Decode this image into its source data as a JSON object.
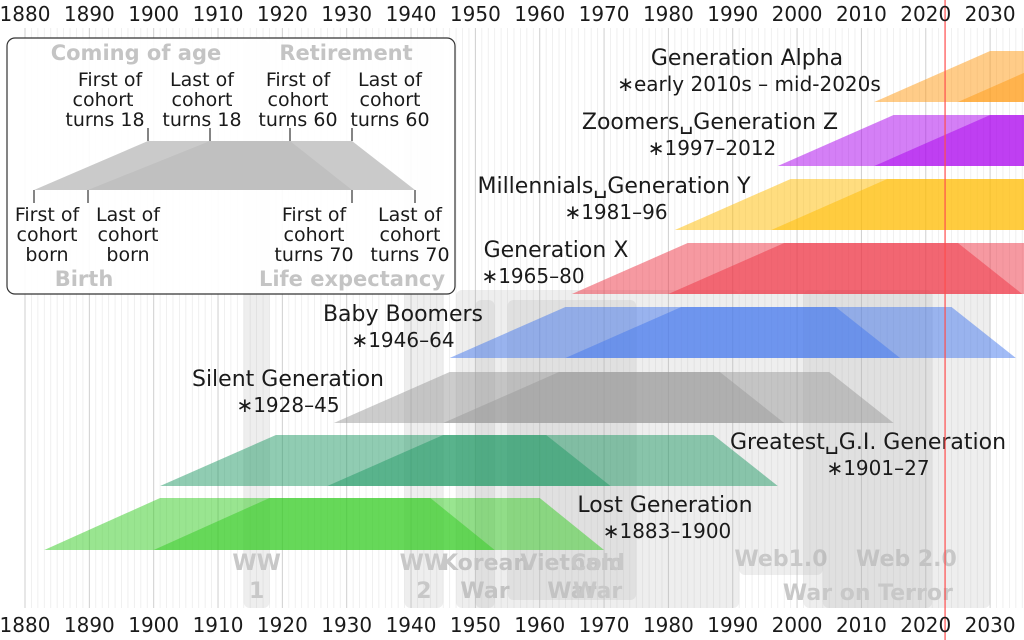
{
  "decades": [
    "1880",
    "1890",
    "1900",
    "1910",
    "1920",
    "1930",
    "1940",
    "1950",
    "1960",
    "1970",
    "1980",
    "1990",
    "2000",
    "2010",
    "2020",
    "2030"
  ],
  "current_year_line": {
    "year": 2023,
    "color": "#ff4d4d"
  },
  "events": [
    {
      "id": "ww1",
      "label": [
        "WW",
        "1"
      ],
      "start": 1914,
      "end": 1918
    },
    {
      "id": "ww2",
      "label": [
        "WW",
        "2"
      ],
      "start": 1939,
      "end": 1945
    },
    {
      "id": "korean-war",
      "label": [
        "Korean",
        "War"
      ],
      "start": 1950,
      "end": 1953
    },
    {
      "id": "vietnam-war",
      "label": [
        "Vietnam",
        "War"
      ],
      "start": 1955,
      "end": 1975
    },
    {
      "id": "cold-war",
      "label": [
        "Cold",
        "War"
      ],
      "start": 1947,
      "end": 1991
    },
    {
      "id": "web1",
      "label": [
        "Web1.0"
      ],
      "start": 1991,
      "end": 2004
    },
    {
      "id": "web2",
      "label": [
        "Web 2.0"
      ],
      "start": 2004,
      "end": 2030
    },
    {
      "id": "war-on-terror",
      "label": [
        "War on Terror"
      ],
      "start": 2001,
      "end": 2021
    }
  ],
  "generations": [
    {
      "id": "lost",
      "name": "Lost Generation",
      "years": "∗1883–1900",
      "color": "#33cc22",
      "born_first": 1883,
      "born_last": 1900
    },
    {
      "id": "greatest",
      "name": "Greatest␣G.I. Generation",
      "years": "∗1901–27",
      "color": "#229966",
      "born_first": 1901,
      "born_last": 1927
    },
    {
      "id": "silent",
      "name": "Silent Generation",
      "years": "∗1928–45",
      "color": "#999999",
      "born_first": 1928,
      "born_last": 1945
    },
    {
      "id": "boomers",
      "name": "Baby Boomers",
      "years": "∗1946–64",
      "color": "#4477ee",
      "born_first": 1946,
      "born_last": 1964
    },
    {
      "id": "gen-x",
      "name": "Generation X",
      "years": "∗1965–80",
      "color": "#ee3344",
      "born_first": 1965,
      "born_last": 1980
    },
    {
      "id": "millennials",
      "name": "Millennials␣Generation Y",
      "years": "∗1981–96",
      "color": "#ffbb00",
      "born_first": 1981,
      "born_last": 1996
    },
    {
      "id": "zoomers",
      "name": "Zoomers␣Generation Z",
      "years": "∗1997–2012",
      "color": "#aa00ee",
      "born_first": 1997,
      "born_last": 2012
    },
    {
      "id": "alpha",
      "name": "Generation Alpha",
      "years": "∗early 2010s – mid-2020s",
      "color": "#ff9911",
      "born_first": 2012,
      "born_last": 2025
    }
  ],
  "legend": {
    "coming_of_age": "Coming of age",
    "retirement": "Retirement",
    "birth": "Birth",
    "life_expectancy": "Life expectancy",
    "first_18": [
      "First of",
      "cohort",
      "turns 18"
    ],
    "last_18": [
      "Last of",
      "cohort",
      "turns 18"
    ],
    "first_60": [
      "First of",
      "cohort",
      "turns 60"
    ],
    "last_60": [
      "Last of",
      "cohort",
      "turns 60"
    ],
    "first_born": [
      "First of",
      "cohort",
      "born"
    ],
    "last_born": [
      "Last of",
      "cohort",
      "born"
    ],
    "first_70": [
      "First of",
      "cohort",
      "turns 70"
    ],
    "last_70": [
      "Last of",
      "cohort",
      "turns 70"
    ]
  }
}
